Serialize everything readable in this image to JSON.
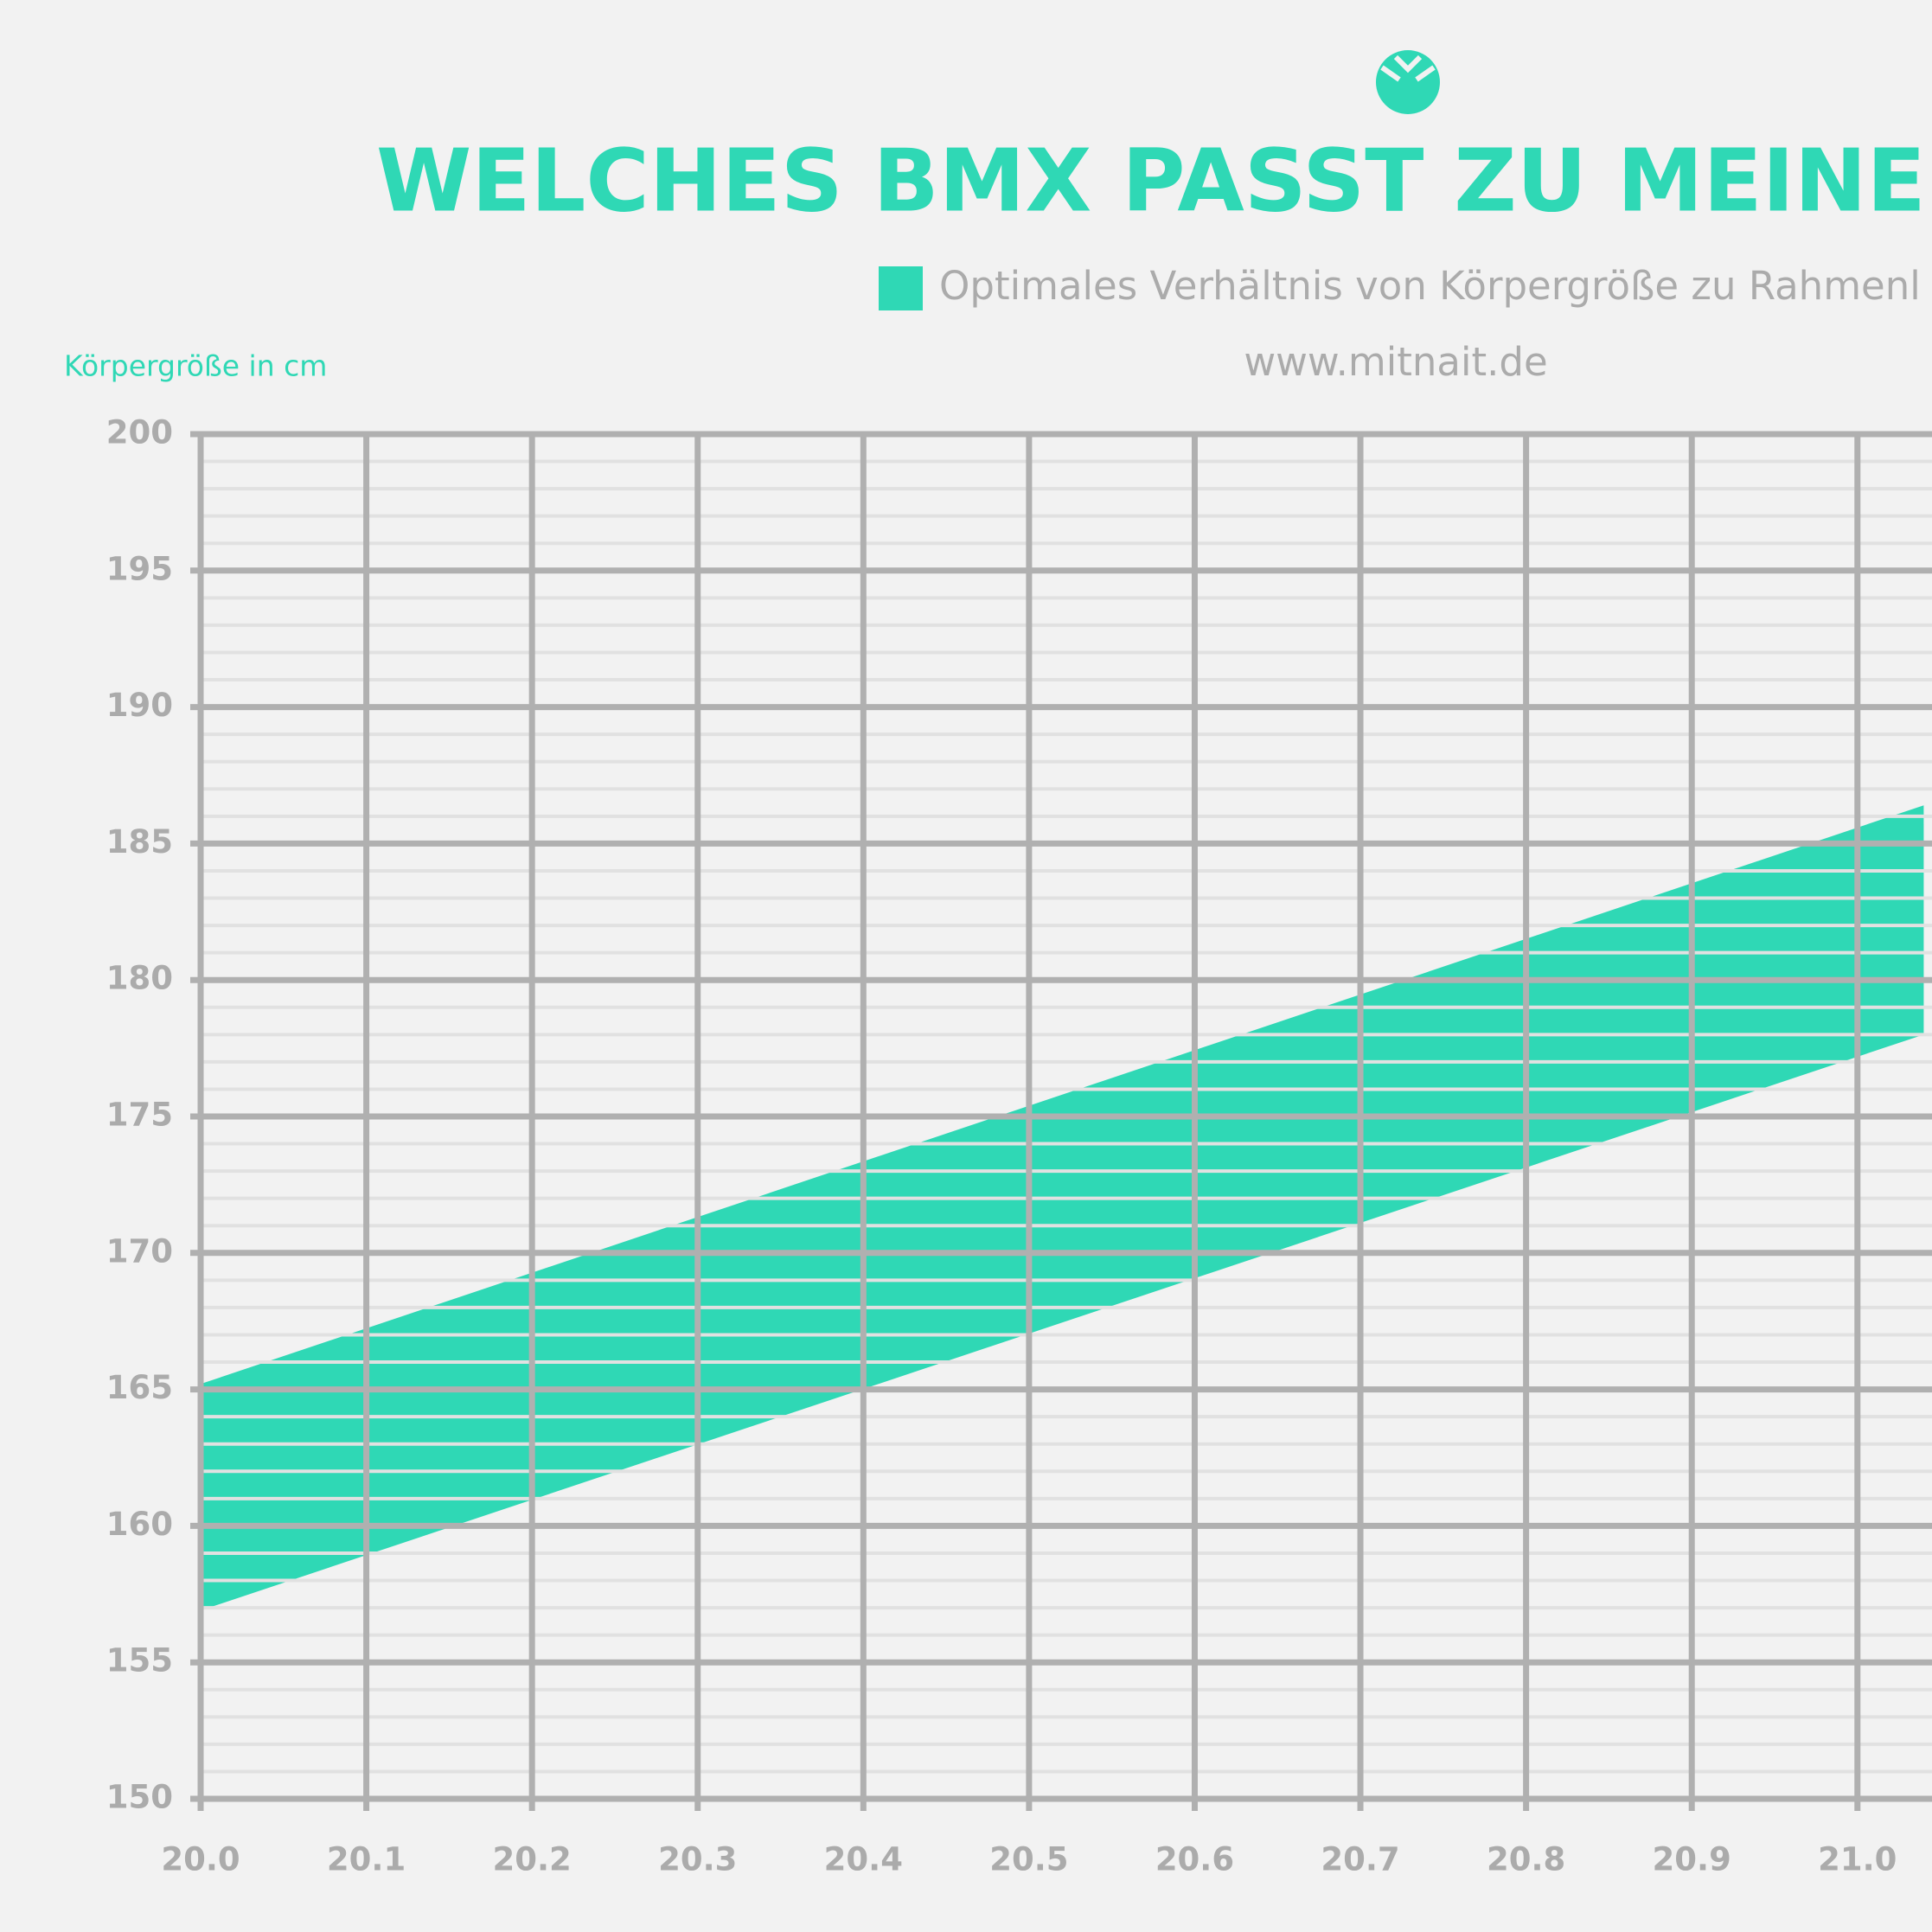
{
  "chart_data": {
    "type": "band",
    "title": "WELCHES BMX PASST ZU MEINER KÖ",
    "source": "www.mitnait.de",
    "ylabel": "Körpergröße in cm",
    "x": [
      20.0,
      21.04
    ],
    "series": [
      {
        "name": "Optimales Verhältnis von Körpergröße zu Rahmenl",
        "color": "#2fd8b5",
        "upper": [
          165.2,
          186.4
        ],
        "lower": [
          156.9,
          178.0
        ]
      }
    ],
    "xlim": [
      20.0,
      21.045
    ],
    "ylim": [
      150,
      200
    ],
    "xticks": [
      {
        "value": 20.0,
        "label": "20.0"
      },
      {
        "value": 20.1,
        "label": "20.1"
      },
      {
        "value": 20.2,
        "label": "20.2"
      },
      {
        "value": 20.3,
        "label": "20.3"
      },
      {
        "value": 20.4,
        "label": "20.4"
      },
      {
        "value": 20.5,
        "label": "20.5"
      },
      {
        "value": 20.6,
        "label": "20.6"
      },
      {
        "value": 20.7,
        "label": "20.7"
      },
      {
        "value": 20.8,
        "label": "20.8"
      },
      {
        "value": 20.9,
        "label": "20.9"
      },
      {
        "value": 21.0,
        "label": "21.0"
      }
    ],
    "yticks": [
      150,
      155,
      160,
      165,
      170,
      175,
      180,
      185,
      190,
      195,
      200
    ],
    "yminorticks": [
      151,
      152,
      153,
      154,
      156,
      157,
      158,
      159,
      161,
      162,
      163,
      164,
      166,
      167,
      168,
      169,
      171,
      172,
      173,
      174,
      176,
      177,
      178,
      179,
      181,
      182,
      183,
      184,
      186,
      187,
      188,
      189,
      191,
      192,
      193,
      194,
      196,
      197,
      198,
      199
    ],
    "grid": true
  }
}
